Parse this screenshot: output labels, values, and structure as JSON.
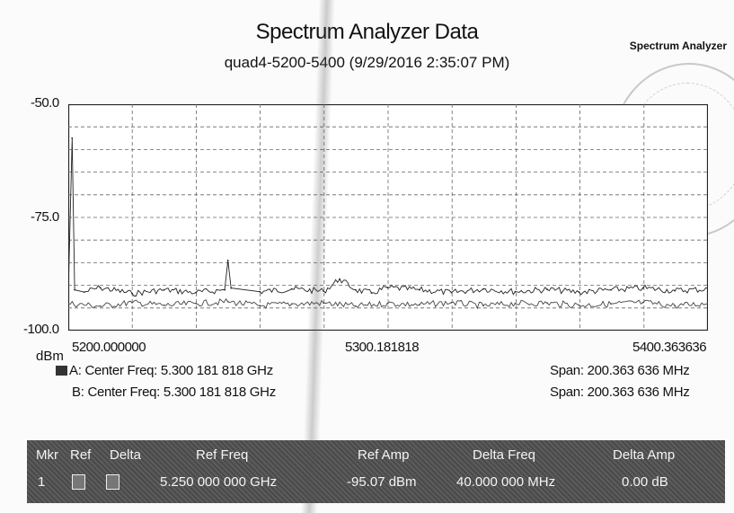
{
  "header": {
    "title": "Spectrum Analyzer Data",
    "subtitle": "quad4-5200-5400 (9/29/2016 2:35:07 PM)",
    "brand": "Spectrum Analyzer"
  },
  "chart_data": {
    "type": "line",
    "title": "Spectrum Analyzer Data",
    "subtitle": "quad4-5200-5400 (9/29/2016 2:35:07 PM)",
    "xlabel": "",
    "ylabel": "dBm",
    "xlim": [
      5200.0,
      5400.363636
    ],
    "ylim": [
      -100.0,
      -50.0
    ],
    "grid": true,
    "y_ticks": [
      "-50.0",
      "-75.0",
      "-100.0"
    ],
    "y_unit": "dBm",
    "x_ticks": [
      "5200.000000",
      "5300.181818",
      "5400.363636"
    ],
    "series": [
      {
        "name": "A",
        "x": [
          5200.0,
          5201.2,
          5202.0,
          5205,
          5210,
          5220,
          5230,
          5240,
          5249,
          5250,
          5251,
          5260,
          5270,
          5280,
          5285,
          5290,
          5295,
          5300,
          5310,
          5320,
          5330,
          5340,
          5350,
          5360,
          5370,
          5380,
          5390,
          5400.36
        ],
        "values": [
          -92.0,
          -57.5,
          -91.0,
          -91.5,
          -90.5,
          -91.8,
          -91.0,
          -91.6,
          -91.0,
          -84.5,
          -90.6,
          -91.4,
          -90.8,
          -91.3,
          -88.6,
          -91.0,
          -91.7,
          -90.5,
          -91.0,
          -91.6,
          -90.8,
          -91.4,
          -90.9,
          -91.5,
          -91.0,
          -90.6,
          -91.2,
          -90.8
        ]
      },
      {
        "name": "B",
        "x": [
          5200.0,
          5210,
          5220,
          5230,
          5240,
          5250,
          5260,
          5270,
          5280,
          5290,
          5300,
          5310,
          5320,
          5330,
          5340,
          5350,
          5360,
          5370,
          5380,
          5390,
          5400.36
        ],
        "values": [
          -94.0,
          -94.6,
          -93.8,
          -94.4,
          -94.0,
          -93.6,
          -94.5,
          -94.1,
          -93.9,
          -94.6,
          -94.0,
          -94.3,
          -93.8,
          -94.5,
          -94.0,
          -93.9,
          -94.4,
          -94.1,
          -93.8,
          -94.5,
          -94.0
        ]
      }
    ]
  },
  "traces": {
    "a_info": "A: Center Freq: 5.300 181 818 GHz",
    "a_span": "Span: 200.363 636 MHz",
    "b_info": "B: Center Freq: 5.300 181 818 GHz",
    "b_span": "Span: 200.363 636 MHz"
  },
  "marker_table": {
    "headers": [
      "Mkr",
      "Ref",
      "Delta",
      "Ref Freq",
      "Ref Amp",
      "Delta Freq",
      "Delta Amp"
    ],
    "rows": [
      {
        "mkr": "1",
        "ref_freq": "5.250 000 000 GHz",
        "ref_amp": "-95.07 dBm",
        "delta_freq": "40.000 000 MHz",
        "delta_amp": "0.00 dB"
      }
    ]
  }
}
